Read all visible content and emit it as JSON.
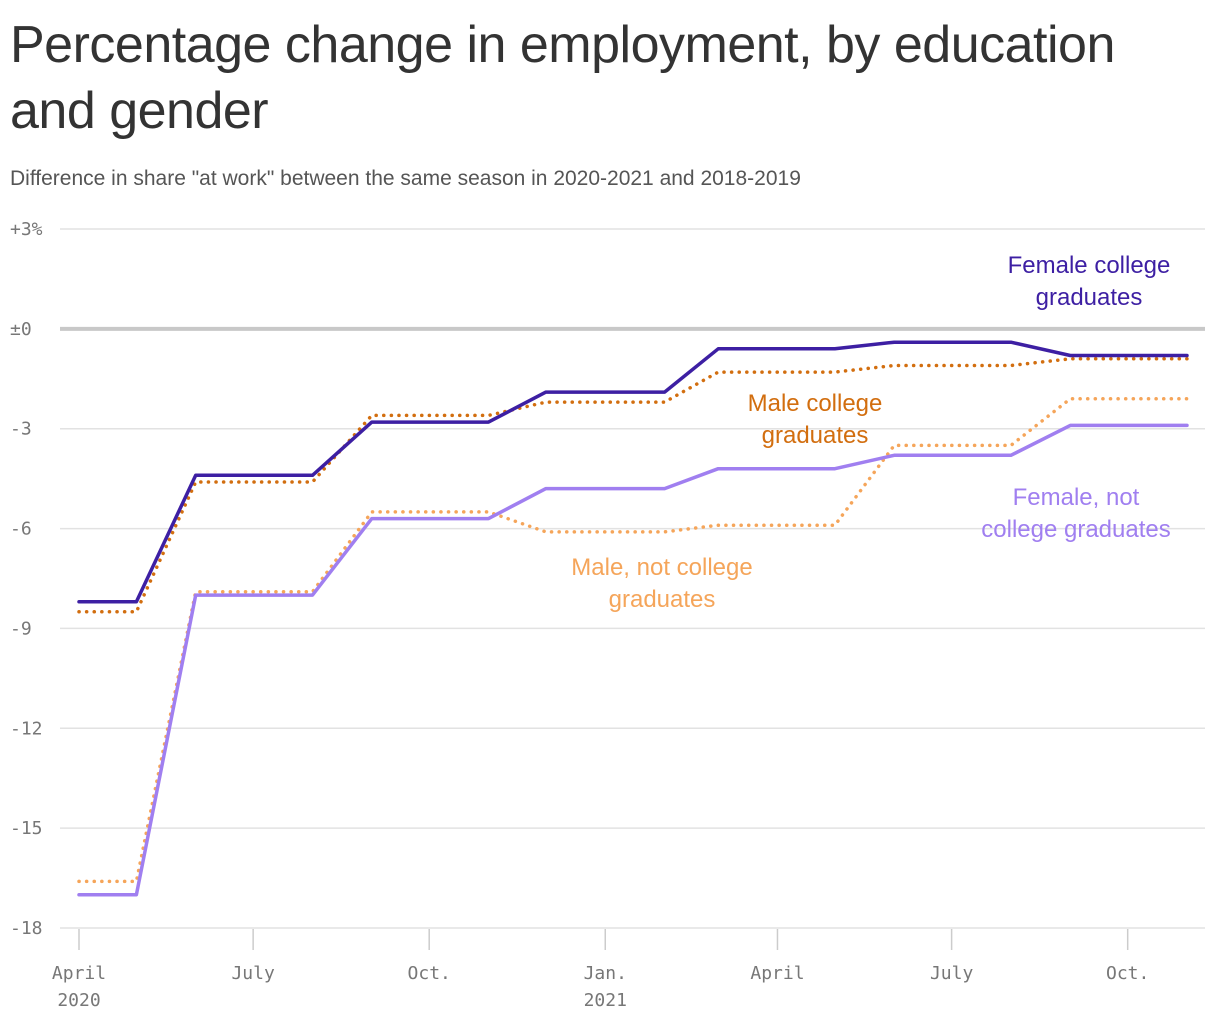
{
  "title": "Percentage change in employment, by education and gender",
  "subtitle": "Difference in share \"at work\" between the same season in 2020-2021 and 2018-2019",
  "chart_data": {
    "type": "line",
    "x": [
      "2020-04",
      "2020-05",
      "2020-06",
      "2020-07",
      "2020-08",
      "2020-09",
      "2020-10",
      "2020-11",
      "2020-12",
      "2021-01",
      "2021-02",
      "2021-03",
      "2021-04",
      "2021-05",
      "2021-06",
      "2021-07",
      "2021-08",
      "2021-09",
      "2021-10",
      "2021-11"
    ],
    "ylim": [
      -18,
      3
    ],
    "yticks": [
      {
        "value": 3,
        "label": "+3%"
      },
      {
        "value": 0,
        "label": "±0"
      },
      {
        "value": -3,
        "label": "-3"
      },
      {
        "value": -6,
        "label": "-6"
      },
      {
        "value": -9,
        "label": "-9"
      },
      {
        "value": -12,
        "label": "-12"
      },
      {
        "value": -15,
        "label": "-15"
      },
      {
        "value": -18,
        "label": "-18"
      }
    ],
    "xticks": [
      {
        "date": "2020-04-01",
        "label": "April",
        "sublabel": "2020"
      },
      {
        "date": "2020-07-01",
        "label": "July",
        "sublabel": ""
      },
      {
        "date": "2020-10-01",
        "label": "Oct.",
        "sublabel": ""
      },
      {
        "date": "2021-01-01",
        "label": "Jan.",
        "sublabel": "2021"
      },
      {
        "date": "2021-04-01",
        "label": "April",
        "sublabel": ""
      },
      {
        "date": "2021-07-01",
        "label": "July",
        "sublabel": ""
      },
      {
        "date": "2021-10-01",
        "label": "Oct.",
        "sublabel": ""
      }
    ],
    "series": [
      {
        "name": "Male, not college graduates",
        "color": "#f5a55a",
        "style": "dotted",
        "points": [
          [
            "2020-04-01",
            -16.6
          ],
          [
            "2020-05-01",
            -16.6
          ],
          [
            "2020-06-01",
            -7.9
          ],
          [
            "2020-07-01",
            -7.9
          ],
          [
            "2020-08-01",
            -7.9
          ],
          [
            "2020-09-01",
            -5.5
          ],
          [
            "2020-10-01",
            -5.5
          ],
          [
            "2020-11-01",
            -5.5
          ],
          [
            "2020-12-01",
            -6.1
          ],
          [
            "2021-01-01",
            -6.1
          ],
          [
            "2021-02-01",
            -6.1
          ],
          [
            "2021-03-01",
            -5.9
          ],
          [
            "2021-04-01",
            -5.9
          ],
          [
            "2021-05-01",
            -5.9
          ],
          [
            "2021-06-01",
            -3.5
          ],
          [
            "2021-07-01",
            -3.5
          ],
          [
            "2021-08-01",
            -3.5
          ],
          [
            "2021-09-01",
            -2.1
          ],
          [
            "2021-10-01",
            -2.1
          ],
          [
            "2021-11-01",
            -2.1
          ]
        ]
      },
      {
        "name": "Female, not college graduates",
        "color": "#a07ff0",
        "style": "solid",
        "points": [
          [
            "2020-04-01",
            -17.0
          ],
          [
            "2020-05-01",
            -17.0
          ],
          [
            "2020-06-01",
            -8.0
          ],
          [
            "2020-07-01",
            -8.0
          ],
          [
            "2020-08-01",
            -8.0
          ],
          [
            "2020-09-01",
            -5.7
          ],
          [
            "2020-10-01",
            -5.7
          ],
          [
            "2020-11-01",
            -5.7
          ],
          [
            "2020-12-01",
            -4.8
          ],
          [
            "2021-01-01",
            -4.8
          ],
          [
            "2021-02-01",
            -4.8
          ],
          [
            "2021-03-01",
            -4.2
          ],
          [
            "2021-04-01",
            -4.2
          ],
          [
            "2021-05-01",
            -4.2
          ],
          [
            "2021-06-01",
            -3.8
          ],
          [
            "2021-07-01",
            -3.8
          ],
          [
            "2021-08-01",
            -3.8
          ],
          [
            "2021-09-01",
            -2.9
          ],
          [
            "2021-10-01",
            -2.9
          ],
          [
            "2021-11-01",
            -2.9
          ]
        ]
      },
      {
        "name": "Male college graduates",
        "color": "#d26e0f",
        "style": "dotted",
        "points": [
          [
            "2020-04-01",
            -8.5
          ],
          [
            "2020-05-01",
            -8.5
          ],
          [
            "2020-06-01",
            -4.6
          ],
          [
            "2020-07-01",
            -4.6
          ],
          [
            "2020-08-01",
            -4.6
          ],
          [
            "2020-09-01",
            -2.6
          ],
          [
            "2020-10-01",
            -2.6
          ],
          [
            "2020-11-01",
            -2.6
          ],
          [
            "2020-12-01",
            -2.2
          ],
          [
            "2021-01-01",
            -2.2
          ],
          [
            "2021-02-01",
            -2.2
          ],
          [
            "2021-03-01",
            -1.3
          ],
          [
            "2021-04-01",
            -1.3
          ],
          [
            "2021-05-01",
            -1.3
          ],
          [
            "2021-06-01",
            -1.1
          ],
          [
            "2021-07-01",
            -1.1
          ],
          [
            "2021-08-01",
            -1.1
          ],
          [
            "2021-09-01",
            -0.9
          ],
          [
            "2021-10-01",
            -0.9
          ],
          [
            "2021-11-01",
            -0.9
          ]
        ]
      },
      {
        "name": "Female college graduates",
        "color": "#3d1fa3",
        "style": "solid",
        "points": [
          [
            "2020-04-01",
            -8.2
          ],
          [
            "2020-05-01",
            -8.2
          ],
          [
            "2020-06-01",
            -4.4
          ],
          [
            "2020-07-01",
            -4.4
          ],
          [
            "2020-08-01",
            -4.4
          ],
          [
            "2020-09-01",
            -2.8
          ],
          [
            "2020-10-01",
            -2.8
          ],
          [
            "2020-11-01",
            -2.8
          ],
          [
            "2020-12-01",
            -1.9
          ],
          [
            "2021-01-01",
            -1.9
          ],
          [
            "2021-02-01",
            -1.9
          ],
          [
            "2021-03-01",
            -0.6
          ],
          [
            "2021-04-01",
            -0.6
          ],
          [
            "2021-05-01",
            -0.6
          ],
          [
            "2021-06-01",
            -0.4
          ],
          [
            "2021-07-01",
            -0.4
          ],
          [
            "2021-08-01",
            -0.4
          ],
          [
            "2021-09-01",
            -0.8
          ],
          [
            "2021-10-01",
            -0.8
          ],
          [
            "2021-11-01",
            -0.8
          ]
        ]
      }
    ],
    "labels": [
      {
        "series": 3,
        "lines": [
          "Female college",
          "graduates"
        ]
      },
      {
        "series": 2,
        "lines": [
          "Male college",
          "graduates"
        ]
      },
      {
        "series": 1,
        "lines": [
          "Female, not",
          "college graduates"
        ]
      },
      {
        "series": 0,
        "lines": [
          "Male, not college",
          "graduates"
        ]
      }
    ],
    "grid": true,
    "zero_line": true
  }
}
